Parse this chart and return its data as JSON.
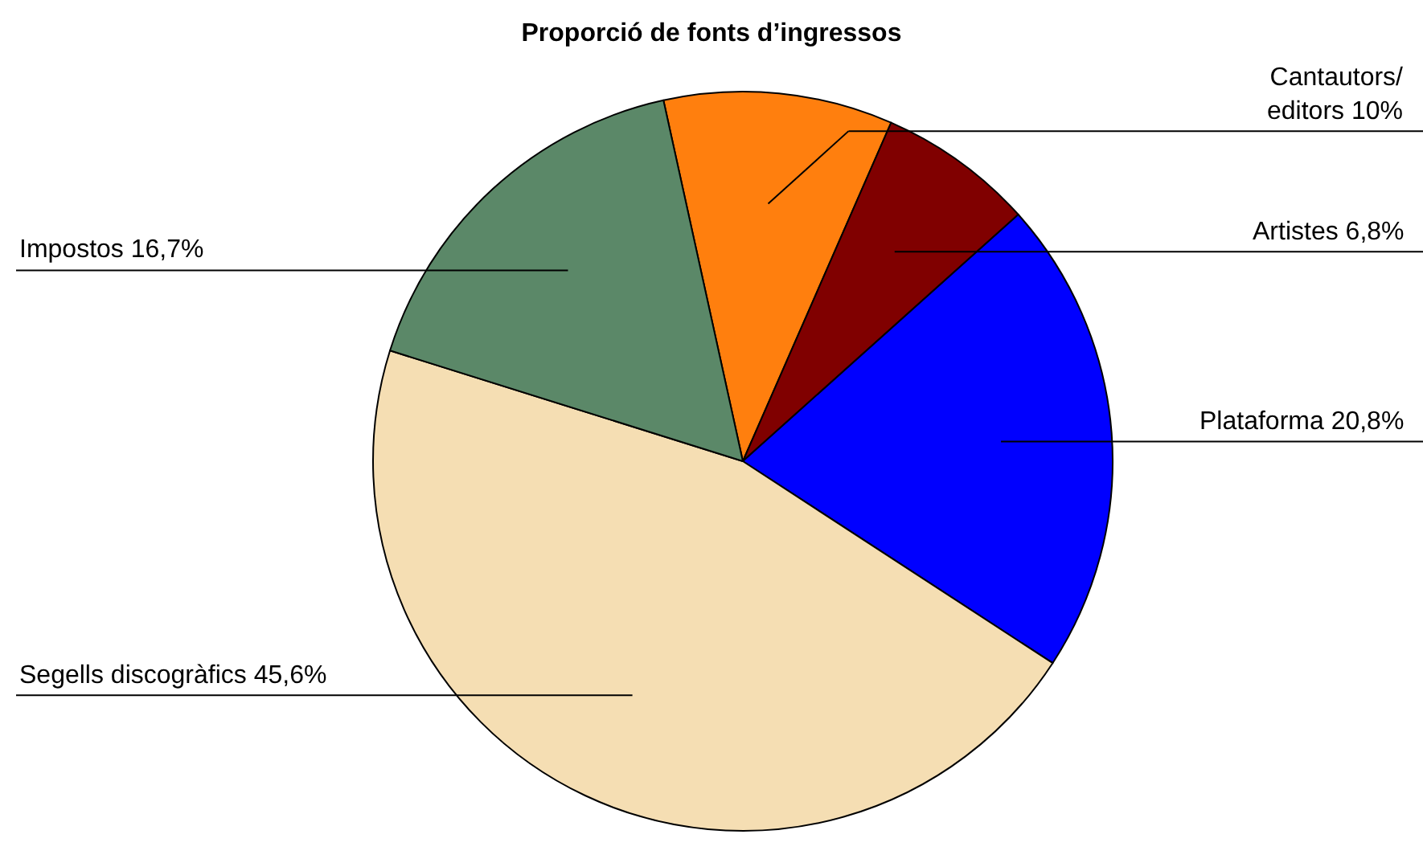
{
  "chart_data": {
    "type": "pie",
    "title": "Proporció de fonts d’ingressos",
    "categories": [
      "Cantautors/\neditors",
      "Artistes",
      "Plataforma",
      "Segells discogràfics",
      "Impostos"
    ],
    "values": [
      10,
      6.8,
      20.8,
      45.6,
      16.7
    ],
    "value_labels": [
      "10%",
      "6,8%",
      "20,8%",
      "45,6%",
      "16,7%"
    ],
    "colors": [
      "#ff7f0e",
      "#800000",
      "#0000ff",
      "#f5deb3",
      "#5b8868"
    ],
    "legend": false
  }
}
